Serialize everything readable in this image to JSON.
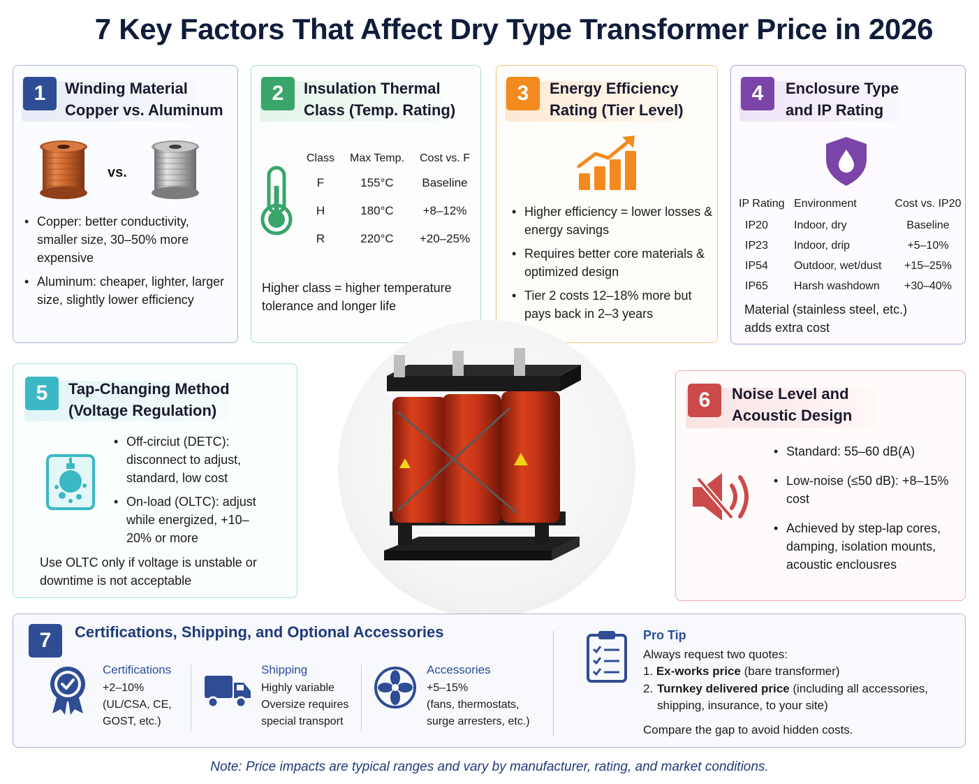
{
  "title": "7 Key Factors That Affect Dry Type Transformer Price in 2026",
  "colors": {
    "blue": "#2e4d94",
    "green": "#3aa56b",
    "orange": "#f28a1e",
    "purple": "#7b44a8",
    "teal": "#3bb8c4",
    "red": "#cc4a4a"
  },
  "card1": {
    "num": "1",
    "title_l1": "Winding Material",
    "title_l2": "Copper vs. Aluminum",
    "vs": "vs.",
    "b1": "Copper: better conductivity, smaller size, 30–50% more expensive",
    "b2": "Aluminum: cheaper, lighter, larger size, slightly lower efficiency"
  },
  "card2": {
    "num": "2",
    "title_l1": "Insulation Thermal",
    "title_l2": "Class (Temp. Rating)",
    "headers": [
      "Class",
      "Max Temp.",
      "Cost vs. F"
    ],
    "rows": [
      [
        "F",
        "155°C",
        "Baseline"
      ],
      [
        "H",
        "180°C",
        "+8–12%"
      ],
      [
        "R",
        "220°C",
        "+20–25%"
      ]
    ],
    "note": "Higher class = higher temperature tolerance and longer life"
  },
  "card3": {
    "num": "3",
    "title_l1": "Energy Efficiency",
    "title_l2": "Rating (Tier Level)",
    "b1": "Higher efficiency = lower losses & energy savings",
    "b2": "Requires better core materials & optimized design",
    "b3": "Tier 2 costs 12–18% more but pays back in 2–3 years"
  },
  "card4": {
    "num": "4",
    "title_l1": "Enclosure Type",
    "title_l2": "and IP Rating",
    "headers": [
      "IP Rating",
      "Environment",
      "Cost vs. IP20"
    ],
    "rows": [
      [
        "IP20",
        "Indoor, dry",
        "Baseline"
      ],
      [
        "IP23",
        "Indoor, drip",
        "+5–10%"
      ],
      [
        "IP54",
        "Outdoor, wet/dust",
        "+15–25%"
      ],
      [
        "IP65",
        "Harsh washdown",
        "+30–40%"
      ]
    ],
    "note": "Material (stainless steel, etc.) adds extra cost"
  },
  "card5": {
    "num": "5",
    "title_l1": "Tap-Changing Method",
    "title_l2": "(Voltage Regulation)",
    "b1": "Off-circiut (DETC): disconnect to adjust, standard, low cost",
    "b2": "On-load (OLTC): adjust while energized, +10–20% or more",
    "note": "Use OLTC only if voltage is unstable or downtime is not acceptable"
  },
  "card6": {
    "num": "6",
    "title_l1": "Noise Level and",
    "title_l2": "Acoustic Design",
    "b1": "Standard: 55–60 dB(A)",
    "b2": "Low-noise (≤50 dB): +8–15% cost",
    "b3": "Achieved by step-lap cores, damping, isolation mounts, acoustic enclousres"
  },
  "card7": {
    "num": "7",
    "title": "Certifications, Shipping, and Optional Accessories",
    "cert": {
      "head": "Certifications",
      "l1": "+2–10%",
      "l2": "(UL/CSA, CE,",
      "l3": "GOST, etc.)"
    },
    "ship": {
      "head": "Shipping",
      "l1": "Highly variable",
      "l2": "Oversize requires",
      "l3": "special transport"
    },
    "acc": {
      "head": "Accessories",
      "l1": "+5–15%",
      "l2": "(fans, thermostats,",
      "l3": "surge arresters, etc.)"
    },
    "tip": {
      "head": "Pro Tip",
      "intro": "Always request two quotes:",
      "i1_num": "1.",
      "i1_bold": "Ex-works price",
      "i1_rest": " (bare transformer)",
      "i2_num": "2.",
      "i2_bold": "Turnkey delivered price",
      "i2_rest": " (including all accessories, shipping, insurance, to your site)",
      "close": "Compare the gap to avoid hidden costs."
    }
  },
  "note": "Note: Price impacts are typical ranges and vary by manufacturer, rating, and market conditions."
}
